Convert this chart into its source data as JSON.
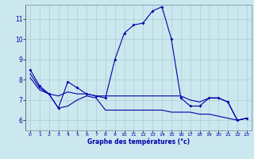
{
  "xlabel": "Graphe des températures (°c)",
  "background_color": "#cce8ef",
  "grid_color": "#aaccd4",
  "line_color": "#0000aa",
  "xlim": [
    -0.5,
    23.5
  ],
  "ylim": [
    5.5,
    11.7
  ],
  "yticks": [
    6,
    7,
    8,
    9,
    10,
    11
  ],
  "xticks": [
    0,
    1,
    2,
    3,
    4,
    5,
    6,
    7,
    8,
    9,
    10,
    11,
    12,
    13,
    14,
    15,
    16,
    17,
    18,
    19,
    20,
    21,
    22,
    23
  ],
  "series1": {
    "x": [
      0,
      1,
      2,
      3,
      4,
      5,
      6,
      7,
      8,
      9,
      10,
      11,
      12,
      13,
      14,
      15,
      16,
      17,
      18,
      19,
      20,
      21,
      22,
      23
    ],
    "y": [
      8.5,
      7.7,
      7.3,
      6.6,
      7.9,
      7.6,
      7.3,
      7.2,
      7.1,
      9.0,
      10.3,
      10.7,
      10.8,
      11.4,
      11.6,
      10.0,
      7.1,
      6.7,
      6.7,
      7.1,
      7.1,
      6.9,
      6.0,
      6.1
    ]
  },
  "series2": {
    "x": [
      0,
      1,
      2,
      3,
      4,
      5,
      6,
      7,
      8,
      9,
      10,
      11,
      12,
      13,
      14,
      15,
      16,
      17,
      18,
      19,
      20,
      21,
      22,
      23
    ],
    "y": [
      8.3,
      7.6,
      7.3,
      7.2,
      7.4,
      7.3,
      7.3,
      7.2,
      7.2,
      7.2,
      7.2,
      7.2,
      7.2,
      7.2,
      7.2,
      7.2,
      7.2,
      7.0,
      6.9,
      7.1,
      7.1,
      6.9,
      6.0,
      6.1
    ]
  },
  "series3": {
    "x": [
      0,
      1,
      2,
      3,
      4,
      5,
      6,
      7,
      8,
      9,
      10,
      11,
      12,
      13,
      14,
      15,
      16,
      17,
      18,
      19,
      20,
      21,
      22,
      23
    ],
    "y": [
      8.1,
      7.5,
      7.3,
      6.6,
      6.7,
      7.0,
      7.2,
      7.1,
      6.5,
      6.5,
      6.5,
      6.5,
      6.5,
      6.5,
      6.5,
      6.4,
      6.4,
      6.4,
      6.3,
      6.3,
      6.2,
      6.1,
      6.0,
      6.1
    ]
  },
  "xlabel_fontsize": 5.5,
  "tick_fontsize_x": 4.5,
  "tick_fontsize_y": 5.5,
  "linewidth": 0.8,
  "markersize": 2.0
}
